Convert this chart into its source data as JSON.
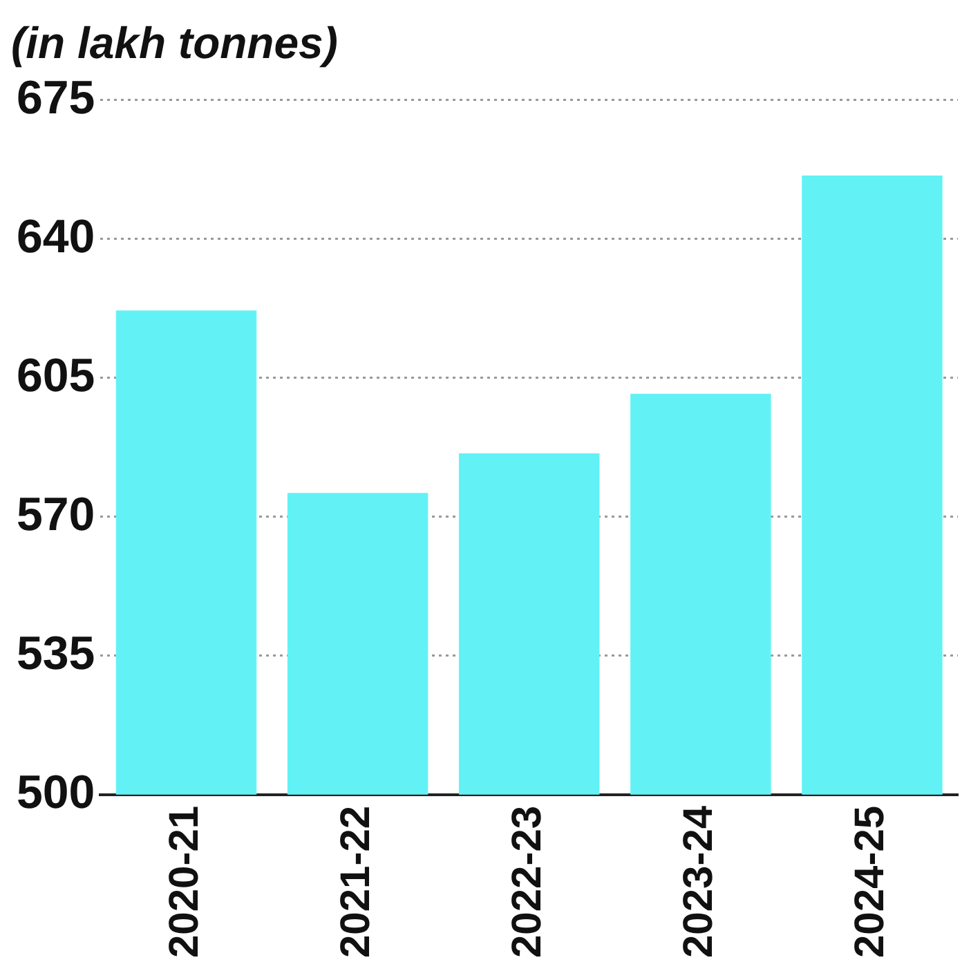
{
  "chart_data": {
    "type": "bar",
    "title": "(in lakh tonnes)",
    "categories": [
      "2020-21",
      "2021-22",
      "2022-23",
      "2023-24",
      "2024-25"
    ],
    "values": [
      622,
      576,
      586,
      601,
      656
    ],
    "color": "#62f2f6",
    "ylim": [
      500,
      675
    ],
    "yticks": [
      500,
      535,
      570,
      605,
      640,
      675
    ],
    "grid": "y"
  }
}
